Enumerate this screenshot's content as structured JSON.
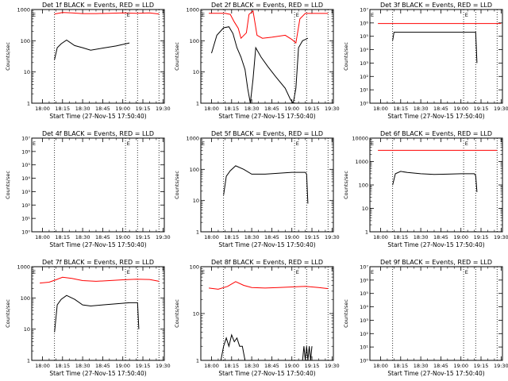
{
  "x_axis_label": "Start Time (27-Nov-15 17:50:40)",
  "y_axis_label": "Counts/sec",
  "x_tick_labels": [
    "18:00",
    "18:15",
    "18:30",
    "18:45",
    "19:00",
    "19:15",
    "19:30"
  ],
  "colors": {
    "events": "#000000",
    "lld": "#ff0000"
  },
  "chart_data": [
    {
      "type": "line",
      "title": "Det 1f BLACK = Events, RED = LLD",
      "yscale": "log",
      "ylim": [
        1,
        1000
      ],
      "yticks": [
        "1",
        "10",
        "100",
        "1000"
      ],
      "corner_marks": [
        "E",
        "E"
      ],
      "vlines": [
        "18:09",
        "19:02",
        "19:11",
        "19:27"
      ],
      "series": [
        {
          "color": "red",
          "x": [
            "18:09",
            "18:15",
            "18:22",
            "18:30",
            "18:40",
            "18:50",
            "19:00",
            "19:10",
            "19:20",
            "19:27"
          ],
          "values": [
            720,
            800,
            780,
            740,
            740,
            760,
            780,
            760,
            780,
            720
          ]
        },
        {
          "color": "black",
          "x": [
            "18:09",
            "18:11",
            "18:14",
            "18:18",
            "18:24",
            "18:30",
            "18:36",
            "18:45",
            "18:55",
            "19:05"
          ],
          "values": [
            25,
            60,
            80,
            105,
            70,
            60,
            50,
            58,
            68,
            85
          ]
        }
      ]
    },
    {
      "type": "line",
      "title": "Det 2f BLACK = Events, RED = LLD",
      "yscale": "log",
      "ylim": [
        1,
        1000
      ],
      "yticks": [
        "1",
        "10",
        "100",
        "1000"
      ],
      "corner_marks": [
        "E",
        "E"
      ],
      "vlines": [
        "18:09",
        "19:02",
        "19:11",
        "19:27"
      ],
      "series": [
        {
          "color": "red",
          "x": [
            "17:58",
            "18:10",
            "18:14",
            "18:17",
            "18:20",
            "18:22",
            "18:26",
            "18:28",
            "18:31",
            "18:34",
            "18:38",
            "18:45",
            "18:55",
            "19:00",
            "19:03",
            "19:06",
            "19:10",
            "19:20",
            "19:27"
          ],
          "values": [
            760,
            760,
            700,
            400,
            250,
            120,
            180,
            700,
            900,
            150,
            120,
            130,
            150,
            110,
            85,
            500,
            750,
            750,
            750
          ]
        },
        {
          "color": "black",
          "x": [
            "18:00",
            "18:04",
            "18:09",
            "18:13",
            "18:16",
            "18:19",
            "18:22",
            "18:25",
            "18:27",
            "18:29",
            "18:31",
            "18:33",
            "18:37",
            "18:42",
            "18:48",
            "18:55",
            "18:59",
            "19:01",
            "19:03",
            "19:05",
            "19:08",
            "19:12"
          ],
          "values": [
            40,
            150,
            260,
            280,
            170,
            60,
            30,
            12,
            3,
            1,
            6,
            60,
            30,
            15,
            7,
            3,
            1.3,
            1,
            3,
            60,
            100,
            120
          ]
        }
      ]
    },
    {
      "type": "line",
      "title": "Det 3f BLACK = Events, RED = LLD",
      "yscale": "log",
      "ylim": [
        1,
        10000000
      ],
      "yticks": [
        "1",
        "10",
        "100",
        "1000",
        "10000",
        "100000",
        "1000000",
        "10000000"
      ],
      "corner_marks": [
        "E",
        "E"
      ],
      "vlines": [
        "18:09",
        "19:02",
        "19:11",
        "19:27"
      ],
      "series": [
        {
          "color": "red",
          "x": [
            "17:58",
            "19:30"
          ],
          "values": [
            900000,
            900000
          ]
        },
        {
          "color": "black",
          "x": [
            "18:09",
            "18:10",
            "19:11",
            "19:12"
          ],
          "values": [
            50000,
            200000,
            200000,
            1000
          ]
        }
      ]
    },
    {
      "type": "line",
      "title": "Det 4f BLACK = Events, RED = LLD",
      "yscale": "log",
      "ylim": [
        1,
        10000000
      ],
      "yticks": [
        "1",
        "10",
        "100",
        "1000",
        "10000",
        "100000",
        "1000000",
        "10000000"
      ],
      "corner_marks": [
        "E",
        "E"
      ],
      "vlines": [
        "18:09",
        "19:02",
        "19:11",
        "19:27"
      ],
      "series": []
    },
    {
      "type": "line",
      "title": "Det 5f BLACK = Events, RED = LLD",
      "yscale": "log",
      "ylim": [
        1,
        1000
      ],
      "yticks": [
        "1",
        "10",
        "100",
        "1000"
      ],
      "corner_marks": [
        "E",
        "E"
      ],
      "vlines": [
        "18:09",
        "19:02",
        "19:11",
        "19:27"
      ],
      "series": [
        {
          "color": "black",
          "x": [
            "18:09",
            "18:11",
            "18:14",
            "18:18",
            "18:24",
            "18:30",
            "18:40",
            "18:50",
            "19:00",
            "19:10",
            "19:11",
            "19:12"
          ],
          "values": [
            15,
            60,
            90,
            130,
            100,
            70,
            70,
            75,
            80,
            80,
            70,
            8
          ]
        }
      ]
    },
    {
      "type": "line",
      "title": "Det 6f BLACK = Events, RED = LLD",
      "yscale": "log",
      "ylim": [
        1,
        10000
      ],
      "yticks": [
        "1",
        "10",
        "100",
        "1000",
        "10000"
      ],
      "corner_marks": [
        "E",
        "E"
      ],
      "vlines": [
        "18:09",
        "19:02",
        "19:11",
        "19:27"
      ],
      "series": [
        {
          "color": "red",
          "x": [
            "17:58",
            "19:27"
          ],
          "values": [
            3000,
            3000
          ]
        },
        {
          "color": "black",
          "x": [
            "18:09",
            "18:11",
            "18:15",
            "18:20",
            "18:30",
            "18:40",
            "18:50",
            "19:00",
            "19:10",
            "19:11",
            "19:12"
          ],
          "values": [
            100,
            300,
            380,
            340,
            300,
            280,
            290,
            300,
            300,
            250,
            50
          ]
        }
      ]
    },
    {
      "type": "line",
      "title": "Det 7f BLACK = Events, RED = LLD",
      "yscale": "log",
      "ylim": [
        1,
        1000
      ],
      "yticks": [
        "1",
        "10",
        "100",
        "1000"
      ],
      "corner_marks": [
        "E",
        "E"
      ],
      "vlines": [
        "18:09",
        "19:02",
        "19:11",
        "19:27"
      ],
      "series": [
        {
          "color": "red",
          "x": [
            "17:58",
            "18:05",
            "18:10",
            "18:15",
            "18:22",
            "18:30",
            "18:40",
            "18:50",
            "19:00",
            "19:10",
            "19:20",
            "19:27"
          ],
          "values": [
            300,
            320,
            380,
            460,
            420,
            360,
            340,
            360,
            380,
            400,
            390,
            340
          ]
        },
        {
          "color": "black",
          "x": [
            "18:09",
            "18:11",
            "18:14",
            "18:18",
            "18:24",
            "18:30",
            "18:36",
            "18:45",
            "18:55",
            "19:05",
            "19:11",
            "19:12"
          ],
          "values": [
            8,
            60,
            90,
            120,
            90,
            60,
            55,
            60,
            65,
            70,
            70,
            10
          ]
        }
      ]
    },
    {
      "type": "line",
      "title": "Det 8f BLACK = Events, RED = LLD",
      "yscale": "log",
      "ylim": [
        1,
        100
      ],
      "yticks": [
        "1",
        "10",
        "100"
      ],
      "corner_marks": [
        "E",
        "E"
      ],
      "vlines": [
        "18:09",
        "19:02",
        "19:11",
        "19:27"
      ],
      "series": [
        {
          "color": "red",
          "x": [
            "17:58",
            "18:05",
            "18:12",
            "18:18",
            "18:24",
            "18:30",
            "18:40",
            "18:50",
            "19:00",
            "19:10",
            "19:20",
            "19:27"
          ],
          "values": [
            35,
            33,
            38,
            48,
            40,
            36,
            35,
            36,
            37,
            38,
            36,
            34
          ]
        },
        {
          "color": "black",
          "x": [
            "18:07",
            "18:09",
            "18:11",
            "18:13",
            "18:15",
            "18:17",
            "18:19",
            "18:21",
            "18:23",
            "18:25"
          ],
          "values": [
            1,
            2,
            3,
            2,
            3.5,
            2.5,
            3,
            2,
            2,
            1
          ]
        },
        {
          "color": "black",
          "x": [
            "19:08",
            "19:09",
            "19:10",
            "19:11",
            "19:12",
            "19:13",
            "19:14",
            "19:15"
          ],
          "values": [
            1,
            2,
            1,
            2,
            1,
            2,
            1,
            2
          ]
        }
      ]
    },
    {
      "type": "line",
      "title": "Det 9f BLACK = Events, RED = LLD",
      "yscale": "log",
      "ylim": [
        1,
        10000000
      ],
      "yticks": [
        "1",
        "10",
        "100",
        "1000",
        "10000",
        "100000",
        "1000000",
        "10000000"
      ],
      "corner_marks": [
        "E",
        "E"
      ],
      "vlines": [
        "18:09",
        "19:02",
        "19:11",
        "19:27"
      ],
      "series": []
    }
  ]
}
